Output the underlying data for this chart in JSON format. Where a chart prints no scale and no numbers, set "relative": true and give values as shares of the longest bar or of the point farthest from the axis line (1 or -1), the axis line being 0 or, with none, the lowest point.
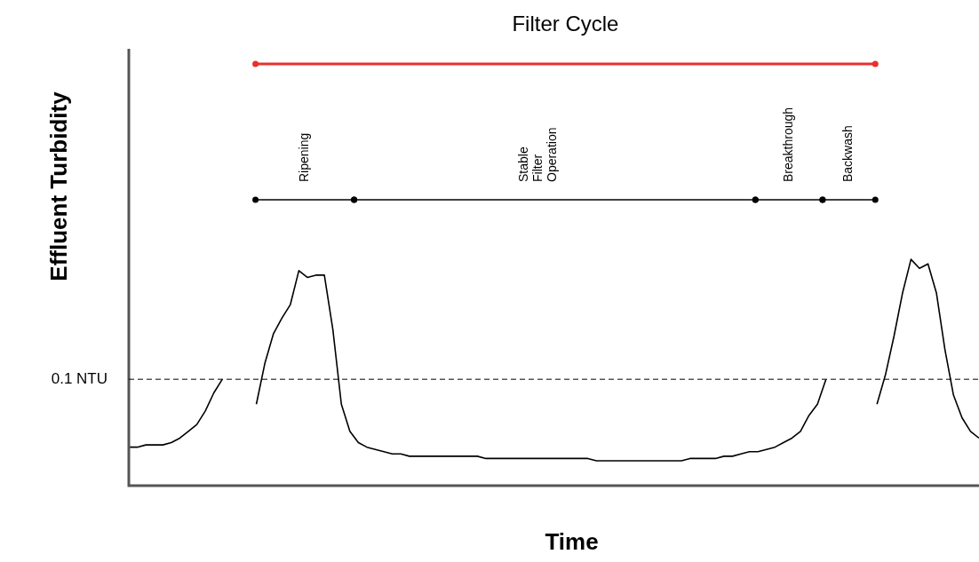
{
  "chart_data": {
    "type": "line",
    "xlabel": "Time",
    "ylabel": "Effluent Turbidity",
    "relative": true,
    "tick_labels": false,
    "marker": "none",
    "line_style": "solid",
    "categories": [
      null,
      null,
      null,
      null,
      null,
      null,
      null,
      null,
      null,
      null,
      null,
      null,
      null,
      null,
      null,
      null,
      null,
      null,
      null,
      null,
      null,
      null,
      null,
      null,
      null,
      null,
      null,
      null,
      null,
      null,
      null,
      null,
      null,
      null,
      null,
      null,
      null,
      null,
      null,
      null,
      null,
      null,
      null,
      null,
      null,
      null,
      null,
      null,
      null,
      null,
      null,
      null,
      null,
      null,
      null,
      null,
      null,
      null,
      null,
      null,
      null,
      null,
      null,
      null,
      null,
      null,
      null,
      null,
      null,
      null,
      null,
      null,
      null,
      null,
      null,
      null,
      null,
      null,
      null,
      null,
      null,
      null,
      null,
      null,
      null,
      null,
      null,
      null,
      null,
      null,
      null,
      null,
      null,
      null,
      null,
      null,
      null,
      null,
      null,
      null,
      null
    ],
    "series": [
      {
        "color": "#000000",
        "values": [
          0.17,
          0.17,
          0.18,
          0.18,
          0.18,
          0.19,
          0.21,
          0.24,
          0.27,
          0.33,
          0.41,
          0.47,
          null,
          null,
          null,
          null,
          null,
          null,
          null,
          null,
          null,
          null,
          null,
          null,
          null,
          null,
          null,
          null,
          null,
          null,
          null,
          null,
          null,
          null,
          null,
          null,
          null,
          null,
          null,
          null,
          null,
          null,
          null,
          null,
          null,
          null,
          null,
          null,
          null,
          null,
          null,
          null,
          null,
          null,
          null,
          null,
          null,
          null,
          null,
          null,
          null,
          null,
          null,
          null,
          null,
          null,
          null,
          null,
          null,
          null,
          null,
          null,
          null,
          null,
          null,
          null,
          null,
          null,
          null,
          null,
          null,
          null,
          null,
          null,
          null,
          null,
          null,
          null,
          null,
          null,
          null,
          null,
          null,
          null,
          null,
          null,
          null,
          null,
          null,
          null,
          null
        ]
      },
      {
        "color": "#000000",
        "values": [
          null,
          null,
          null,
          null,
          null,
          null,
          null,
          null,
          null,
          null,
          null,
          null,
          null,
          null,
          null,
          0.36,
          0.54,
          0.67,
          0.74,
          0.8,
          0.95,
          0.92,
          0.93,
          0.93,
          0.69,
          0.36,
          0.24,
          0.19,
          0.17,
          0.16,
          0.15,
          0.14,
          0.14,
          0.13,
          0.13,
          0.13,
          0.13,
          0.13,
          0.13,
          0.13,
          0.13,
          0.13,
          0.12,
          0.12,
          0.12,
          0.12,
          0.12,
          0.12,
          0.12,
          0.12,
          0.12,
          0.12,
          0.12,
          0.12,
          0.12,
          0.11,
          0.11,
          0.11,
          0.11,
          0.11,
          0.11,
          0.11,
          0.11,
          0.11,
          0.11,
          0.11,
          0.12,
          0.12,
          0.12,
          0.12,
          0.13,
          0.13,
          0.14,
          0.15,
          0.15,
          0.16,
          0.17,
          0.19,
          0.21,
          0.24,
          0.31,
          0.36,
          0.47,
          null,
          null,
          null,
          null,
          null,
          null,
          null,
          null,
          null,
          null,
          null,
          null,
          null,
          null,
          null,
          null,
          null,
          null
        ]
      },
      {
        "color": "#000000",
        "values": [
          null,
          null,
          null,
          null,
          null,
          null,
          null,
          null,
          null,
          null,
          null,
          null,
          null,
          null,
          null,
          null,
          null,
          null,
          null,
          null,
          null,
          null,
          null,
          null,
          null,
          null,
          null,
          null,
          null,
          null,
          null,
          null,
          null,
          null,
          null,
          null,
          null,
          null,
          null,
          null,
          null,
          null,
          null,
          null,
          null,
          null,
          null,
          null,
          null,
          null,
          null,
          null,
          null,
          null,
          null,
          null,
          null,
          null,
          null,
          null,
          null,
          null,
          null,
          null,
          null,
          null,
          null,
          null,
          null,
          null,
          null,
          null,
          null,
          null,
          null,
          null,
          null,
          null,
          null,
          null,
          null,
          null,
          null,
          null,
          null,
          null,
          null,
          null,
          0.36,
          0.49,
          0.66,
          0.85,
          1,
          0.96,
          0.98,
          0.85,
          0.6,
          0.4,
          0.3,
          0.24,
          0.21
        ]
      }
    ],
    "ref_lines": [
      {
        "axis": "y",
        "value": 0.47,
        "label": "0.1 NTU",
        "line_style": "dashed",
        "color": "#000000"
      }
    ],
    "annotations": [
      "Filter Cycle",
      "Ripening",
      "Stable Filter Operation",
      "Breakthrough",
      "Backwash"
    ]
  }
}
